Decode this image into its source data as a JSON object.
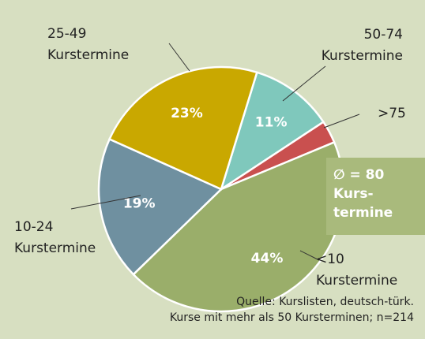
{
  "chart_data": {
    "type": "pie",
    "categories": [
      "50-74 Kurstermine",
      ">75",
      "<10 Kurstermine",
      "10-24 Kurstermine",
      "25-49 Kurstermine"
    ],
    "values": [
      11,
      3,
      44,
      19,
      23
    ],
    "value_labels": [
      "11%",
      null,
      "44%",
      "19%",
      "23%"
    ],
    "colors": [
      "#7fc8bc",
      "#c9504f",
      "#9aae6a",
      "#6f90a0",
      "#c9a800"
    ],
    "annotation": [
      "∅ = 80",
      "Kurs-",
      "termine"
    ],
    "source": [
      "Quelle: Kurslisten, deutsch-türk.",
      "Kurse mit mehr als 50 Kursterminen; n=214"
    ]
  }
}
